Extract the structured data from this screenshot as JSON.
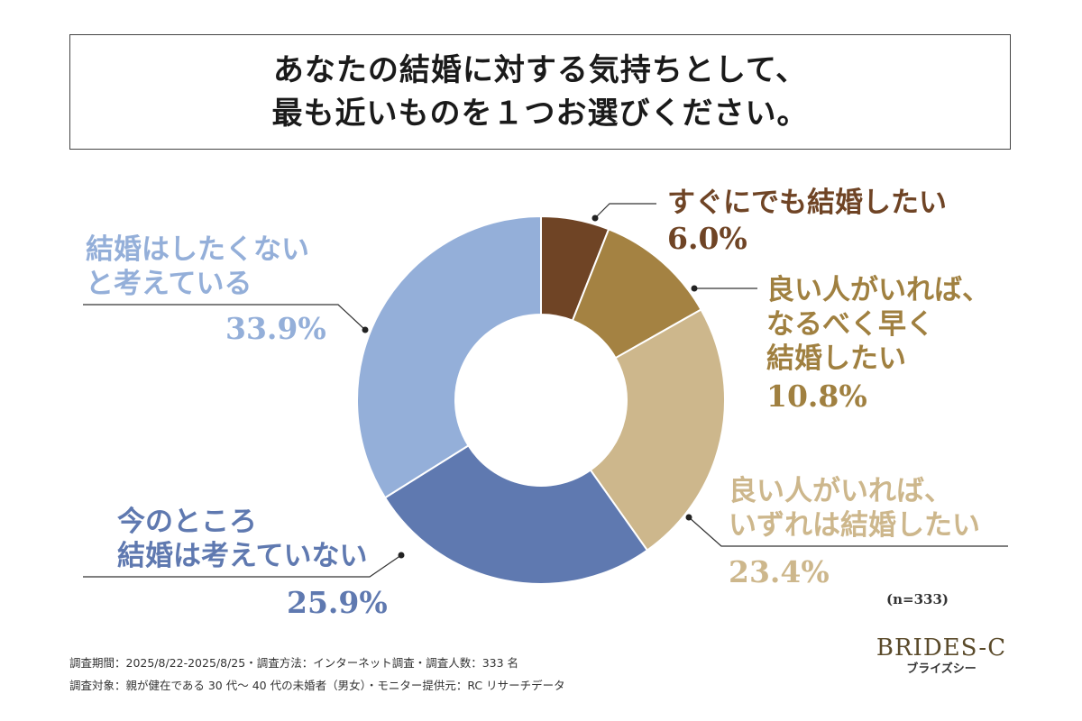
{
  "title": {
    "lines": [
      "あなたの結婚に対する気持ちとして、",
      "最も近いものを１つお選びください。"
    ]
  },
  "chart_data": {
    "type": "pie",
    "variant": "donut",
    "slices": [
      {
        "label": [
          "すぐにでも結婚したい"
        ],
        "value": 6.0,
        "display": "6.0%",
        "color": "#6f4425"
      },
      {
        "label": [
          "良い人がいれば、",
          "なるべく早く",
          "結婚したい"
        ],
        "value": 10.8,
        "display": "10.8%",
        "color": "#a48242"
      },
      {
        "label": [
          "良い人がいれば、",
          "いずれは結婚したい"
        ],
        "value": 23.4,
        "display": "23.4%",
        "color": "#cdb78c"
      },
      {
        "label": [
          "今のところ",
          "結婚は考えていない"
        ],
        "value": 25.9,
        "display": "25.9%",
        "color": "#5f79b0"
      },
      {
        "label": [
          "結婚はしたくない",
          "と考えている"
        ],
        "value": 33.9,
        "display": "33.9%",
        "color": "#94afd9"
      }
    ],
    "label_colors": [
      "#6f4425",
      "#a08040",
      "#cdb78c",
      "#5f79b0",
      "#94afd9"
    ]
  },
  "sample": "(n=333)",
  "footer": {
    "line1": "調査期間：2025/8/22-2025/8/25・調査方法：インターネット調査・調査人数：333 名",
    "line2": "調査対象：親が健在である 30 代～ 40 代の未婚者（男女）・モニター提供元：RC リサーチデータ"
  },
  "brand": {
    "main": "BRIDES-C",
    "sub": "ブライズシー"
  }
}
